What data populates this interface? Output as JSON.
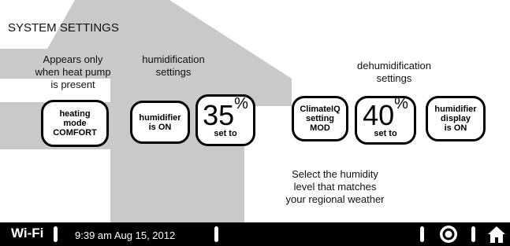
{
  "header": {
    "title": "SYSTEM SETTINGS"
  },
  "captions": [
    {
      "lines": [
        "Appears only",
        "when heat pump",
        "is present"
      ]
    },
    {
      "lines": [
        "humidification",
        "settings"
      ]
    },
    {
      "lines": [
        "dehumidification",
        "settings"
      ]
    },
    {
      "lines": [
        "Select the humidity",
        "level that matches",
        "your regional weather"
      ]
    }
  ],
  "buttons": [
    {
      "lines": [
        "heating",
        "mode",
        "COMFORT"
      ]
    },
    {
      "lines": [
        "humidifier",
        "is ON"
      ]
    },
    {
      "value": "35",
      "unit": "%",
      "label": "set to"
    },
    {
      "lines": [
        "ClimateIQ",
        "setting",
        "MOD"
      ]
    },
    {
      "value": "40",
      "unit": "%",
      "label": "set to"
    },
    {
      "lines": [
        "humidifier",
        "display",
        "is ON"
      ]
    }
  ],
  "status_bar": {
    "wifi": "Wi-Fi",
    "datetime": "9:39 am Aug 15, 2012"
  }
}
